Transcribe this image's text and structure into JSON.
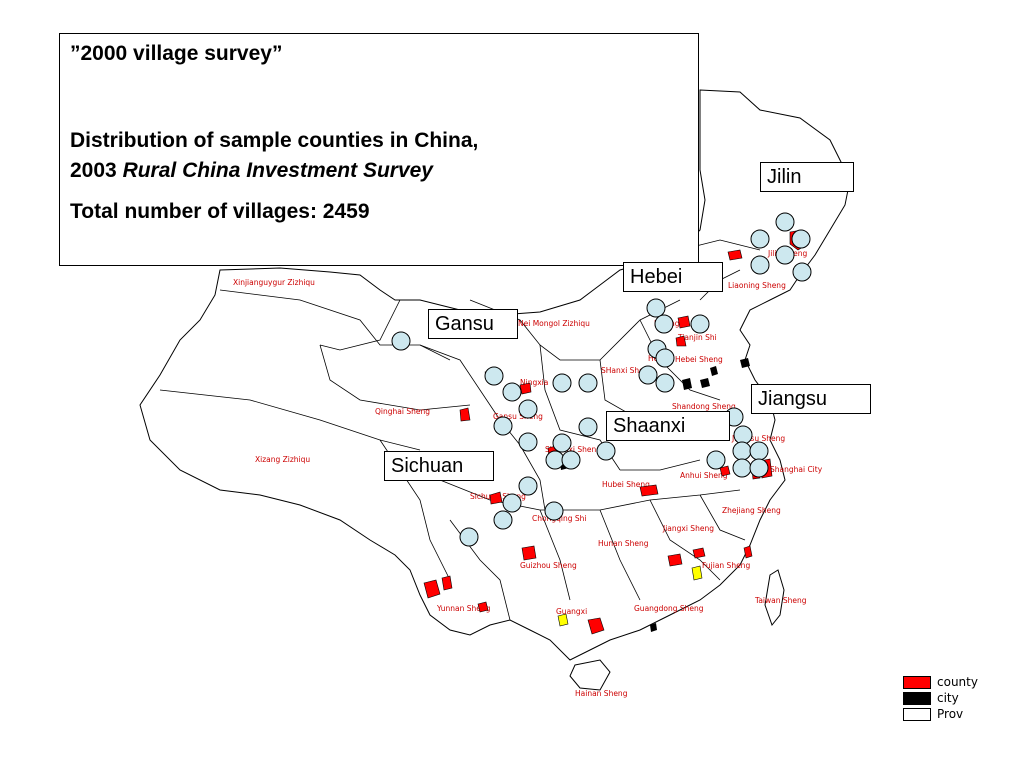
{
  "title": {
    "line1": "”2000 village survey”",
    "line2": "Distribution of sample counties in China,",
    "line3_year": "2003",
    "line3_italic": "Rural China Investment Survey",
    "line4": "Total number of villages:  2459"
  },
  "callouts": {
    "jilin": "Jilin",
    "hebei": "Hebei",
    "gansu": "Gansu",
    "jiangsu": "Jiangsu",
    "shaanxi": "Shaanxi",
    "sichuan": "Sichuan"
  },
  "province_labels": {
    "xinjiang": "Xinjianguygur Zizhiqu",
    "neimenggu": "Nei Mongol Zizhiqu",
    "qinghai": "Qinghai Sheng",
    "xizang": "Xizang Zizhiqu",
    "gansu": "Gansu Sheng",
    "ningxia": "Ningxia",
    "sichuan": "Sichuan Sheng",
    "chongqing": "Chongqing Shi",
    "yunnan": "Yunnan Sheng",
    "guizhou": "Guizhou Sheng",
    "guangxi": "Guangxi",
    "guangdong": "Guangdong Sheng",
    "hainan": "Hainan Sheng",
    "hunan": "Hunan Sheng",
    "hubei": "Hubei Sheng",
    "jiangxi": "Jiangxi Sheng",
    "fujian": "Fujian Sheng",
    "taiwan": "Taiwan Sheng",
    "zhejiang": "Zhejiang Sheng",
    "shanghai": "Shanghai City",
    "anhui": "Anhui Sheng",
    "shandong": "Shandong Sheng",
    "shanxi": "SHanxi Sheng",
    "hebei": "Hebei Sheng",
    "beijing": "Beijing",
    "tianjin": "Tianjin Shi",
    "liaoning": "Liaoning Sheng",
    "jilin": "Jilin Sheng",
    "henan": "He",
    "shaanxi": "Shaanxi Sheng",
    "jiangsu": "Jiangsu Sheng"
  },
  "legend": {
    "items": [
      {
        "label": "county",
        "color": "#ff0000"
      },
      {
        "label": "city",
        "color": "#000000"
      },
      {
        "label": "Prov",
        "color": "#ffffff"
      }
    ]
  },
  "colors": {
    "marker_fill": "#cde8ef",
    "county": "#ff0000",
    "city": "#000000",
    "highlight": "#ffff00"
  }
}
